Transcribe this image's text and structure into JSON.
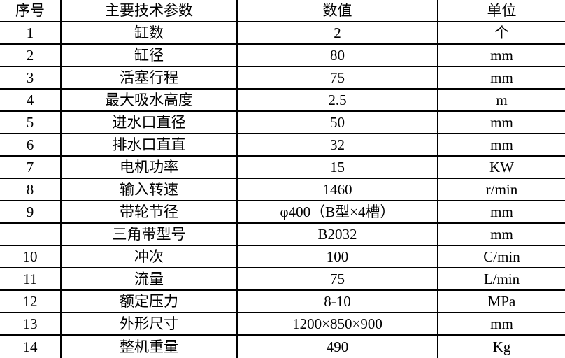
{
  "table": {
    "headers": [
      "序号",
      "主要技术参数",
      "数值",
      "单位"
    ],
    "rows": [
      [
        "1",
        "缸数",
        "2",
        "个"
      ],
      [
        "2",
        "缸径",
        "80",
        "mm"
      ],
      [
        "3",
        "活塞行程",
        "75",
        "mm"
      ],
      [
        "4",
        "最大吸水高度",
        "2.5",
        "m"
      ],
      [
        "5",
        "进水口直径",
        "50",
        "mm"
      ],
      [
        "6",
        "排水口直直",
        "32",
        "mm"
      ],
      [
        "7",
        "电机功率",
        "15",
        "KW"
      ],
      [
        "8",
        "输入转速",
        "1460",
        "r/min"
      ],
      [
        "9",
        "带轮节径",
        "φ400（B型×4槽）",
        "mm"
      ],
      [
        "",
        "三角带型号",
        "B2032",
        "mm"
      ],
      [
        "10",
        "冲次",
        "100",
        "C/min"
      ],
      [
        "11",
        "流量",
        "75",
        "L/min"
      ],
      [
        "12",
        "额定压力",
        "8-10",
        "MPa"
      ],
      [
        "13",
        "外形尺寸",
        "1200×850×900",
        "mm"
      ],
      [
        "14",
        "整机重量",
        "490",
        "Kg"
      ]
    ]
  },
  "colors": {
    "border": "#000000",
    "text": "#000000",
    "background": "#ffffff"
  }
}
